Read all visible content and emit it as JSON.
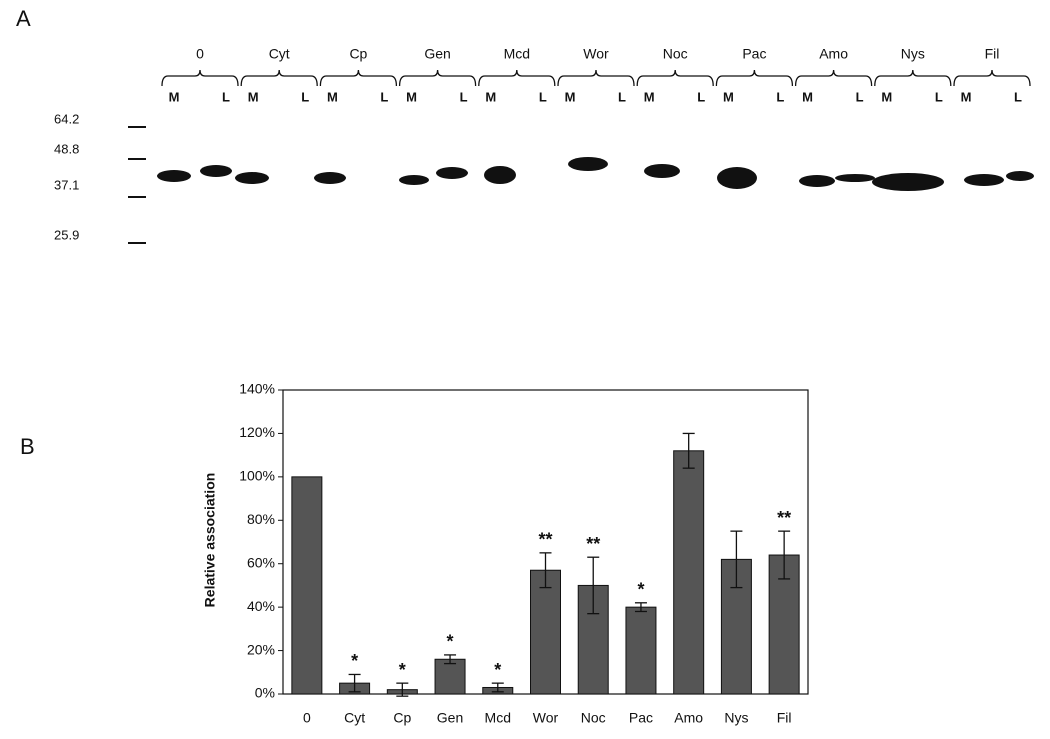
{
  "blot": {
    "panel_label": "A",
    "groups": [
      "0",
      "Cyt",
      "Cp",
      "Gen",
      "Mcd",
      "Wor",
      "Noc",
      "Pac",
      "Amo",
      "Nys",
      "Fil"
    ],
    "lanes": [
      "M",
      "L"
    ],
    "markers": [
      64.2,
      48.8,
      37.1,
      25.9
    ]
  },
  "chart_data": {
    "type": "bar",
    "panel_label": "B",
    "y_label": "Relative association",
    "categories": [
      "0",
      "Cyt",
      "Cp",
      "Gen",
      "Mcd",
      "Wor",
      "Noc",
      "Pac",
      "Amo",
      "Nys",
      "Fil"
    ],
    "values": [
      100,
      5,
      2,
      16,
      3,
      57,
      50,
      40,
      112,
      62,
      64
    ],
    "errors": [
      0,
      4,
      3,
      2,
      2,
      8,
      13,
      2,
      8,
      13,
      11
    ],
    "significance": [
      null,
      "*",
      "*",
      "*",
      "*",
      "**",
      "**",
      "*",
      null,
      null,
      "**"
    ],
    "color": "#555555",
    "ylim": [
      0,
      140
    ],
    "yticks": [
      {
        "value": 0,
        "label": "0%"
      },
      {
        "value": 20,
        "label": "20%"
      },
      {
        "value": 40,
        "label": "40%"
      },
      {
        "value": 60,
        "label": "60%"
      },
      {
        "value": 80,
        "label": "80%"
      },
      {
        "value": 100,
        "label": "100%"
      },
      {
        "value": 120,
        "label": "120%"
      },
      {
        "value": 140,
        "label": "140%"
      }
    ]
  }
}
